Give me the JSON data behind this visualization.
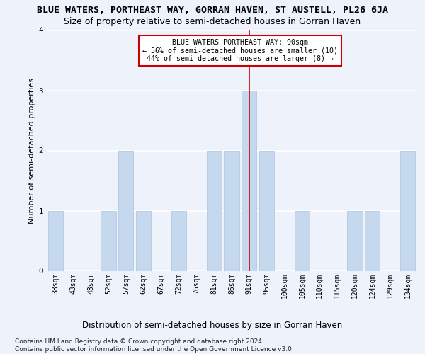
{
  "title": "BLUE WATERS, PORTHEAST WAY, GORRAN HAVEN, ST AUSTELL, PL26 6JA",
  "subtitle": "Size of property relative to semi-detached houses in Gorran Haven",
  "xlabel_dist": "Distribution of semi-detached houses by size in Gorran Haven",
  "ylabel": "Number of semi-detached properties",
  "footer": "Contains HM Land Registry data © Crown copyright and database right 2024.\nContains public sector information licensed under the Open Government Licence v3.0.",
  "categories": [
    "38sqm",
    "43sqm",
    "48sqm",
    "52sqm",
    "57sqm",
    "62sqm",
    "67sqm",
    "72sqm",
    "76sqm",
    "81sqm",
    "86sqm",
    "91sqm",
    "96sqm",
    "100sqm",
    "105sqm",
    "110sqm",
    "115sqm",
    "120sqm",
    "124sqm",
    "129sqm",
    "134sqm"
  ],
  "values": [
    1,
    0,
    0,
    1,
    2,
    1,
    0,
    1,
    0,
    2,
    2,
    3,
    2,
    0,
    1,
    0,
    0,
    1,
    1,
    0,
    2
  ],
  "bar_color": "#c5d8ed",
  "bar_edge_color": "#a8c4de",
  "highlight_index": 11,
  "highlight_color": "#cc0000",
  "annotation_text": "BLUE WATERS PORTHEAST WAY: 90sqm\n← 56% of semi-detached houses are smaller (10)\n44% of semi-detached houses are larger (8) →",
  "annotation_box_color": "#cc0000",
  "ylim": [
    0,
    4
  ],
  "yticks": [
    0,
    1,
    2,
    3,
    4
  ],
  "bg_color": "#eef2fb",
  "plot_bg_color": "#eef2fb",
  "grid_color": "#ffffff",
  "title_fontsize": 9.5,
  "subtitle_fontsize": 9,
  "tick_fontsize": 7,
  "ylabel_fontsize": 8,
  "footer_fontsize": 6.5
}
